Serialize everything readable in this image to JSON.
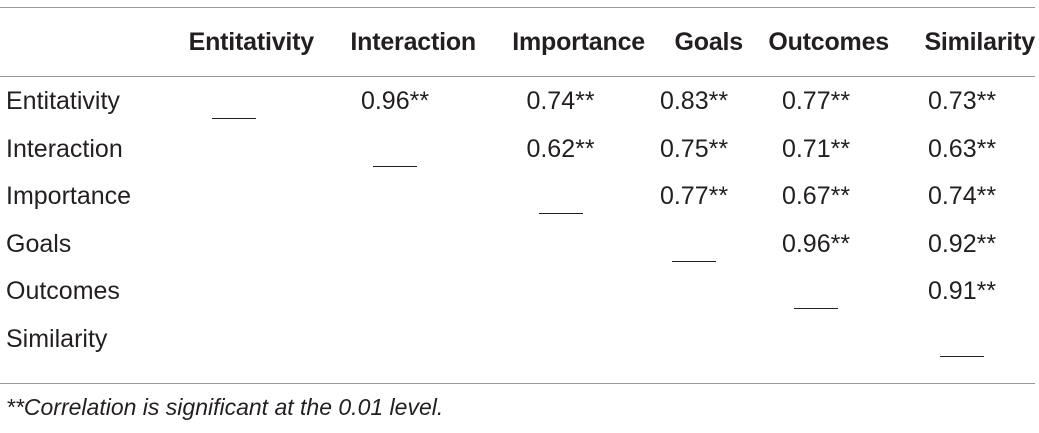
{
  "table": {
    "columns": [
      "",
      "Entitativity",
      "Interaction",
      "Importance",
      "Goals",
      "Outcomes",
      "Similarity"
    ],
    "rows": [
      {
        "label": "Entitativity",
        "cells": [
          "___",
          "0.96**",
          "0.74**",
          "0.83**",
          "0.77**",
          "0.73**"
        ]
      },
      {
        "label": "Interaction",
        "cells": [
          "",
          "___",
          "0.62**",
          "0.75**",
          "0.71**",
          "0.63**"
        ]
      },
      {
        "label": "Importance",
        "cells": [
          "",
          "",
          "___",
          "0.77**",
          "0.67**",
          "0.74**"
        ]
      },
      {
        "label": "Goals",
        "cells": [
          "",
          "",
          "",
          "___",
          "0.96**",
          "0.92**"
        ]
      },
      {
        "label": "Outcomes",
        "cells": [
          "",
          "",
          "",
          "",
          "___",
          "0.91**"
        ]
      },
      {
        "label": "Similarity",
        "cells": [
          "",
          "",
          "",
          "",
          "",
          "___"
        ]
      }
    ]
  },
  "footnote": "**Correlation is significant at the 0.01 level."
}
